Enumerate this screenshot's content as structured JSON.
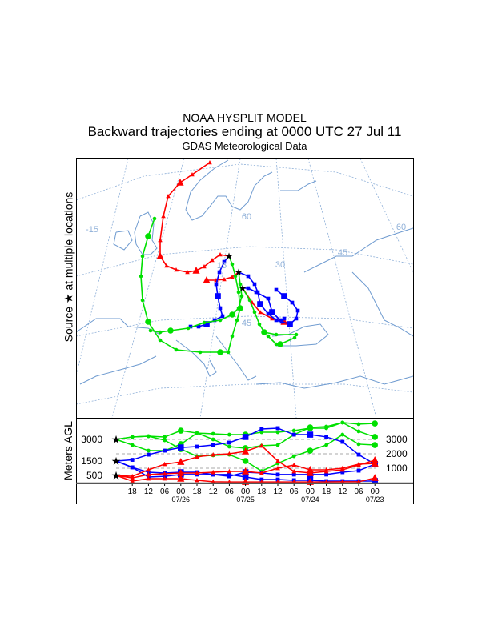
{
  "header": {
    "model": "NOAA HYSPLIT MODEL",
    "title": "Backward trajectories ending at 0000 UTC 27 Jul 11",
    "subtitle": "GDAS Meteorological Data"
  },
  "map": {
    "side_label": "Source ★ at multiple locations",
    "grid_labels": [
      "-15",
      "60",
      "15",
      "30",
      "45",
      "45",
      "60"
    ],
    "colors": {
      "coast": "#6f9bd0",
      "grid": "#8fb0d8",
      "red": "#ff0000",
      "blue": "#0000ff",
      "green": "#00e000"
    }
  },
  "chart_data": {
    "type": "line",
    "ylabel": "Meters AGL",
    "left_height_labels": [
      "3000",
      "1500",
      "500"
    ],
    "right_axis_ticks": [
      "3000",
      "2000",
      "1000"
    ],
    "x_tick_labels": [
      "18",
      "12",
      "06",
      "00",
      "18",
      "12",
      "06",
      "00",
      "18",
      "12",
      "06",
      "00",
      "18",
      "12",
      "06",
      "00"
    ],
    "date_labels": [
      "07/26",
      "07/25",
      "07/24",
      "07/23"
    ],
    "hours_back": [
      0,
      6,
      12,
      18,
      24,
      30,
      36,
      42,
      48,
      54,
      60,
      66,
      72,
      78,
      84,
      90,
      96
    ],
    "ylim": [
      0,
      4300
    ],
    "series": [
      {
        "name": "green-3000-a",
        "color": "#00e000",
        "marker": "circle",
        "values": [
          3000,
          3170,
          3220,
          3170,
          3610,
          3440,
          3390,
          3330,
          3330,
          3500,
          3500,
          3610,
          3780,
          3780,
          4170,
          4060,
          4110
        ]
      },
      {
        "name": "green-3000-b",
        "color": "#00e000",
        "marker": "circle",
        "values": [
          3000,
          2610,
          2220,
          2220,
          2670,
          3440,
          3000,
          2500,
          2390,
          2560,
          2610,
          3330,
          3830,
          3890,
          4170,
          3560,
          3170
        ]
      },
      {
        "name": "green-3000-c",
        "color": "#00e000",
        "marker": "circle",
        "values": [
          3000,
          3170,
          3220,
          2940,
          2330,
          1830,
          1890,
          1940,
          1500,
          800,
          1330,
          1830,
          2220,
          2610,
          3330,
          2670,
          2610
        ]
      },
      {
        "name": "blue-1500-a",
        "color": "#0000ff",
        "marker": "square",
        "values": [
          1500,
          1580,
          1940,
          2220,
          2440,
          2500,
          2610,
          2780,
          3170,
          3720,
          3780,
          3330,
          3330,
          3170,
          2830,
          1940,
          1280
        ]
      },
      {
        "name": "blue-1500-b",
        "color": "#0000ff",
        "marker": "square",
        "values": [
          1500,
          1060,
          720,
          670,
          720,
          720,
          560,
          560,
          390,
          220,
          220,
          170,
          170,
          110,
          110,
          110,
          110
        ]
      },
      {
        "name": "blue-1500-c",
        "color": "#0000ff",
        "marker": "square",
        "values": [
          1500,
          1060,
          390,
          440,
          560,
          560,
          560,
          440,
          720,
          670,
          560,
          560,
          560,
          560,
          720,
          830,
          1280
        ]
      },
      {
        "name": "red-500-a",
        "color": "#ff0000",
        "marker": "triangle",
        "values": [
          500,
          110,
          280,
          280,
          280,
          170,
          60,
          50,
          50,
          50,
          50,
          50,
          50,
          50,
          60,
          60,
          330
        ]
      },
      {
        "name": "red-500-b",
        "color": "#ff0000",
        "marker": "triangle",
        "values": [
          500,
          440,
          890,
          1280,
          1440,
          1780,
          1940,
          2000,
          2170,
          2560,
          1500,
          780,
          670,
          780,
          890,
          1220,
          1560
        ]
      },
      {
        "name": "red-500-c",
        "color": "#ff0000",
        "marker": "triangle",
        "values": [
          500,
          330,
          560,
          610,
          670,
          670,
          720,
          780,
          780,
          670,
          1000,
          1220,
          890,
          890,
          1000,
          1280,
          1330
        ]
      }
    ]
  }
}
